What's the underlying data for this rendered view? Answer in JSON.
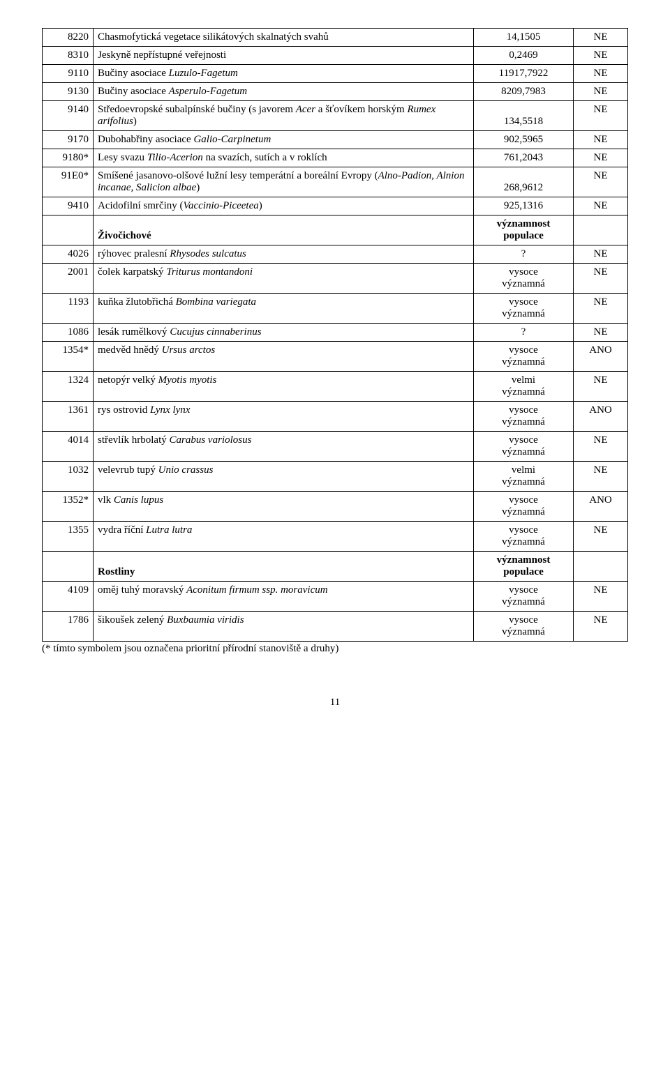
{
  "habitats": [
    {
      "code": "8220",
      "name_plain": "Chasmofytická vegetace silikátových skalnatých svahů",
      "name_italic": "",
      "val": "14,1505",
      "flag": "NE"
    },
    {
      "code": "8310",
      "name_plain": "Jeskyně nepřístupné veřejnosti",
      "name_italic": "",
      "val": "0,2469",
      "flag": "NE"
    },
    {
      "code": "9110",
      "name_plain": "Bučiny asociace ",
      "name_italic": "Luzulo-Fagetum",
      "val": "11917,7922",
      "flag": "NE"
    },
    {
      "code": "9130",
      "name_plain": "Bučiny asociace ",
      "name_italic": "Asperulo-Fagetum",
      "val": "8209,7983",
      "flag": "NE"
    },
    {
      "code": "9140",
      "name_plain": "Středoevropské subalpínské bučiny (s javorem ",
      "name_italic": "Acer",
      "name_plain2": " a šťovíkem horským ",
      "name_italic2": "Rumex arifolius",
      "name_plain3": ")",
      "val": "134,5518",
      "flag": "NE"
    },
    {
      "code": "9170",
      "name_plain": "Dubohabřiny asociace ",
      "name_italic": "Galio-Carpinetum",
      "val": "902,5965",
      "flag": "NE"
    },
    {
      "code": "9180*",
      "name_plain": "Lesy svazu ",
      "name_italic": "Tilio-Acerion",
      "name_plain2": " na svazích, sutích a v roklích",
      "val": "761,2043",
      "flag": "NE"
    },
    {
      "code": "91E0*",
      "name_plain": "Smíšené jasanovo-olšové lužní lesy temperátní a boreální Evropy (",
      "name_italic": "Alno-Padion, Alnion incanae, Salicion albae",
      "name_plain2": ")",
      "val": "268,9612",
      "flag": "NE"
    },
    {
      "code": "9410",
      "name_plain": "Acidofilní smrčiny (",
      "name_italic": "Vaccinio-Piceetea",
      "name_plain2": ")",
      "val": "925,1316",
      "flag": "NE"
    }
  ],
  "animals_header": {
    "label": "Živočichové",
    "val": "významnost populace",
    "flag": ""
  },
  "animals": [
    {
      "code": "4026",
      "name_plain": "rýhovec pralesní ",
      "name_italic": "Rhysodes sulcatus",
      "val": "?",
      "flag": "NE"
    },
    {
      "code": "2001",
      "name_plain": "čolek karpatský ",
      "name_italic": "Triturus montandoni",
      "val": "vysoce významná",
      "flag": "NE"
    },
    {
      "code": "1193",
      "name_plain": "kuňka žlutobřichá ",
      "name_italic": "Bombina variegata",
      "val": "vysoce významná",
      "flag": "NE"
    },
    {
      "code": "1086",
      "name_plain": "lesák rumělkový ",
      "name_italic": "Cucujus cinnaberinus",
      "val": "?",
      "flag": "NE"
    },
    {
      "code": "1354*",
      "name_plain": "medvěd hnědý ",
      "name_italic": "Ursus arctos",
      "val": "vysoce významná",
      "flag": "ANO"
    },
    {
      "code": "1324",
      "name_plain": "netopýr velký ",
      "name_italic": "Myotis myotis",
      "val": "velmi významná",
      "flag": "NE"
    },
    {
      "code": "1361",
      "name_plain": "rys ostrovid ",
      "name_italic": "Lynx lynx",
      "val": "vysoce významná",
      "flag": "ANO"
    },
    {
      "code": "4014",
      "name_plain": "střevlík hrbolatý ",
      "name_italic": "Carabus variolosus",
      "val": "vysoce významná",
      "flag": "NE"
    },
    {
      "code": "1032",
      "name_plain": "velevrub tupý ",
      "name_italic": "Unio crassus",
      "val": "velmi významná",
      "flag": "NE"
    },
    {
      "code": "1352*",
      "name_plain": "vlk ",
      "name_italic": "Canis lupus",
      "val": "vysoce významná",
      "flag": "ANO"
    },
    {
      "code": "1355",
      "name_plain": "vydra říční ",
      "name_italic": "Lutra lutra",
      "val": "vysoce významná",
      "flag": "NE"
    }
  ],
  "plants_header": {
    "label": "Rostliny",
    "val": "významnost populace",
    "flag": ""
  },
  "plants": [
    {
      "code": "4109",
      "name_plain": "oměj tuhý moravský  ",
      "name_italic": "Aconitum firmum ssp. moravicum",
      "val": "vysoce významná",
      "flag": "NE"
    },
    {
      "code": "1786",
      "name_plain": "šikoušek zelený ",
      "name_italic": "Buxbaumia viridis",
      "val": "vysoce významná",
      "flag": "NE"
    }
  ],
  "footnote": "(* tímto symbolem jsou označena prioritní přírodní stanoviště a druhy)",
  "pagenum": "11"
}
